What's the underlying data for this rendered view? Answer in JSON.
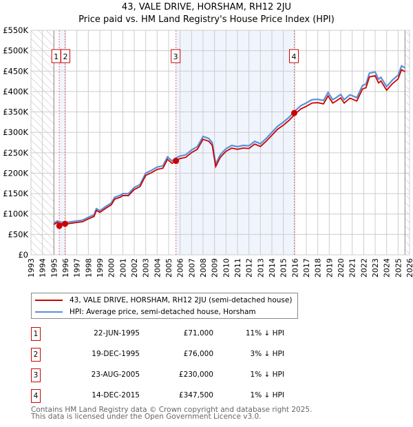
{
  "title_line1": "43, VALE DRIVE, HORSHAM, RH12 2JU",
  "title_line2": "Price paid vs. HM Land Registry's House Price Index (HPI)",
  "chart_data": {
    "type": "line",
    "xlim": [
      1993,
      2026
    ],
    "ylim": [
      0,
      550000
    ],
    "yticks": [
      0,
      50000,
      100000,
      150000,
      200000,
      250000,
      300000,
      350000,
      400000,
      450000,
      500000,
      550000
    ],
    "ytick_labels": [
      "£0",
      "£50K",
      "£100K",
      "£150K",
      "£200K",
      "£250K",
      "£300K",
      "£350K",
      "£400K",
      "£450K",
      "£500K",
      "£550K"
    ],
    "xtick_labels": [
      "1993",
      "1994",
      "1995",
      "1996",
      "1997",
      "1998",
      "1999",
      "2000",
      "2001",
      "2002",
      "2003",
      "2004",
      "2005",
      "2006",
      "2007",
      "2008",
      "2009",
      "2010",
      "2011",
      "2012",
      "2013",
      "2014",
      "2015",
      "2016",
      "2017",
      "2018",
      "2019",
      "2020",
      "2021",
      "2022",
      "2023",
      "2024",
      "2025",
      "2026"
    ],
    "grid": true,
    "series": [
      {
        "name": "43, VALE DRIVE, HORSHAM, RH12 2JU (semi-detached house)",
        "color": "#cc0000",
        "scale": 0.985
      },
      {
        "name": "HPI: Average price, semi-detached house, Horsham",
        "color": "#5b8fd6",
        "x": [
          1995.0,
          1995.3,
          1995.6,
          1996,
          1996.5,
          1997,
          1997.5,
          1998,
          1998.5,
          1998.7,
          1999,
          1999.5,
          2000,
          2000.3,
          2000.8,
          2001,
          2001.5,
          2002,
          2002.5,
          2003,
          2003.5,
          2004,
          2004.5,
          2004.9,
          2005.3,
          2005.6,
          2006,
          2006.5,
          2007,
          2007.5,
          2008,
          2008.5,
          2008.8,
          2009.1,
          2009.5,
          2010,
          2010.5,
          2011,
          2011.5,
          2012,
          2012.5,
          2013,
          2013.5,
          2014,
          2014.5,
          2015,
          2015.5,
          2016,
          2016.5,
          2017,
          2017.5,
          2018,
          2018.5,
          2018.9,
          2019.3,
          2019.6,
          2020,
          2020.3,
          2020.8,
          2021,
          2021.4,
          2021.9,
          2022.2,
          2022.5,
          2023,
          2023.3,
          2023.5,
          2024,
          2024.5,
          2025,
          2025.3,
          2025.6
        ],
        "y": [
          78000,
          83000,
          80000,
          79000,
          81000,
          83000,
          85000,
          92000,
          98000,
          113000,
          108000,
          118000,
          127000,
          141000,
          146000,
          150000,
          150000,
          165000,
          172000,
          200000,
          207000,
          215000,
          218000,
          240000,
          230000,
          237000,
          242000,
          245000,
          257000,
          265000,
          290000,
          285000,
          275000,
          222000,
          245000,
          260000,
          268000,
          265000,
          268000,
          267000,
          278000,
          272000,
          285000,
          300000,
          315000,
          325000,
          337000,
          352000,
          365000,
          372000,
          380000,
          381000,
          378000,
          398000,
          380000,
          385000,
          393000,
          380000,
          392000,
          390000,
          385000,
          415000,
          418000,
          445000,
          448000,
          430000,
          435000,
          412000,
          428000,
          440000,
          463000,
          458000
        ]
      }
    ],
    "sales": [
      {
        "id": "1",
        "x": 1995.47,
        "price": 71000
      },
      {
        "id": "2",
        "x": 1995.97,
        "price": 76000
      },
      {
        "id": "3",
        "x": 2005.64,
        "price": 230000
      },
      {
        "id": "4",
        "x": 2015.95,
        "price": 347500
      }
    ],
    "hatched_ranges": [
      [
        1993,
        1995
      ],
      [
        2025.6,
        2026
      ]
    ],
    "shaded_ranges": [
      [
        1995.47,
        1995.97
      ],
      [
        2005.64,
        2015.95
      ]
    ]
  },
  "legend": {
    "red_label": "43, VALE DRIVE, HORSHAM, RH12 2JU (semi-detached house)",
    "blue_label": "HPI: Average price, semi-detached house, Horsham"
  },
  "table": [
    {
      "num": "1",
      "date": "22-JUN-1995",
      "price": "£71,000",
      "hpi": "11% ↓ HPI"
    },
    {
      "num": "2",
      "date": "19-DEC-1995",
      "price": "£76,000",
      "hpi": "3% ↓ HPI"
    },
    {
      "num": "3",
      "date": "23-AUG-2005",
      "price": "£230,000",
      "hpi": "1% ↓ HPI"
    },
    {
      "num": "4",
      "date": "14-DEC-2015",
      "price": "£347,500",
      "hpi": "1% ↓ HPI"
    }
  ],
  "footer_line1": "Contains HM Land Registry data © Crown copyright and database right 2025.",
  "footer_line2": "This data is licensed under the Open Government Licence v3.0."
}
